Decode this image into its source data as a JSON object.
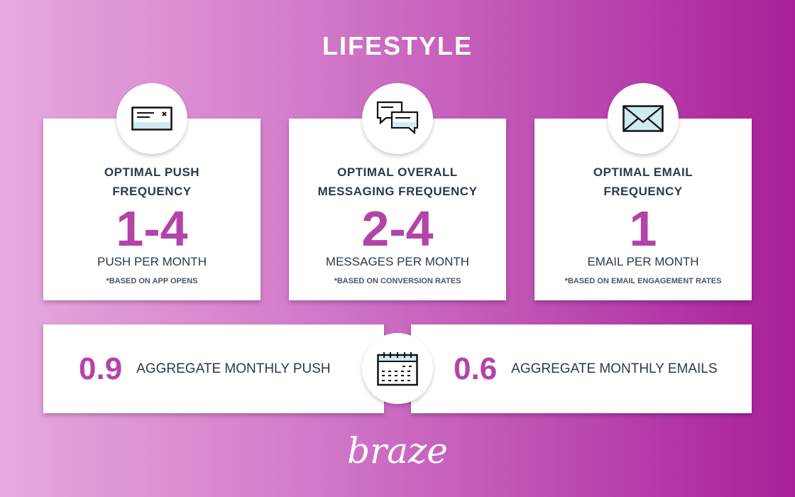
{
  "title": "LIFESTYLE",
  "cards": [
    {
      "icon": "push-notification-icon",
      "heading1": "OPTIMAL PUSH",
      "heading2": "FREQUENCY",
      "value": "1-4",
      "unit": "PUSH PER MONTH",
      "note": "*BASED ON APP OPENS"
    },
    {
      "icon": "chat-bubbles-icon",
      "heading1": "OPTIMAL OVERALL",
      "heading2": "MESSAGING FREQUENCY",
      "value": "2-4",
      "unit": "MESSAGES PER MONTH",
      "note": "*BASED ON CONVERSION RATES"
    },
    {
      "icon": "envelope-icon",
      "heading1": "OPTIMAL EMAIL",
      "heading2": "FREQUENCY",
      "value": "1",
      "unit": "EMAIL PER MONTH",
      "note": "*BASED ON EMAIL ENGAGEMENT RATES"
    }
  ],
  "aggregates": [
    {
      "value": "0.9",
      "label": "AGGREGATE MONTHLY PUSH"
    },
    {
      "value": "0.6",
      "label": "AGGREGATE MONTHLY EMAILS"
    }
  ],
  "center_icon": "calendar-icon",
  "logo": "braze",
  "colors": {
    "accent": "#b443a8",
    "text": "#2c3a47",
    "icon_fill": "#cdebf0"
  }
}
